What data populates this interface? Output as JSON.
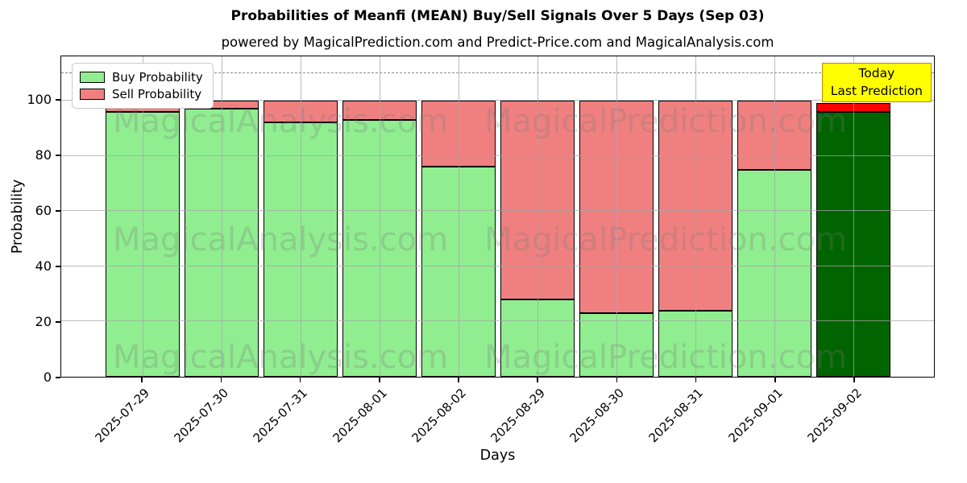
{
  "chart_data": {
    "type": "bar",
    "stacked": true,
    "title": "Probabilities of Meanfi (MEAN) Buy/Sell Signals Over 5 Days (Sep 03)",
    "subtitle": "powered by MagicalPrediction.com and Predict-Price.com and MagicalAnalysis.com",
    "xlabel": "Days",
    "ylabel": "Probability",
    "ylim": [
      0,
      116
    ],
    "yticks": [
      0,
      20,
      40,
      60,
      80,
      100
    ],
    "dashed_guide_y": 110,
    "grid": true,
    "legend_position": "upper-left",
    "categories": [
      "2025-07-29",
      "2025-07-30",
      "2025-07-31",
      "2025-08-01",
      "2025-08-02",
      "2025-08-29",
      "2025-08-30",
      "2025-08-31",
      "2025-09-01",
      "2025-09-02"
    ],
    "series": [
      {
        "name": "Buy Probability",
        "color": "#90ee90",
        "values": [
          96,
          97,
          92,
          93,
          76,
          28,
          23,
          24,
          75,
          96
        ]
      },
      {
        "name": "Sell Probability",
        "color": "#f08080",
        "values": [
          4,
          3,
          8,
          7,
          24,
          72,
          77,
          76,
          25,
          3
        ]
      }
    ],
    "today_highlight": {
      "category_index": 9,
      "buy_color": "#006400",
      "sell_color": "#ff0000"
    },
    "annotation_box": {
      "lines": [
        "Today",
        "Last Prediction"
      ],
      "bg_color": "#ffff00",
      "border_color": "#b8860b"
    },
    "watermarks": {
      "left": "MagicalAnalysis.com",
      "right": "MagicalPrediction.com"
    },
    "colors": {
      "axis": "#000000",
      "grid": "#a5a5a5",
      "bar_edge": "#000000"
    }
  }
}
